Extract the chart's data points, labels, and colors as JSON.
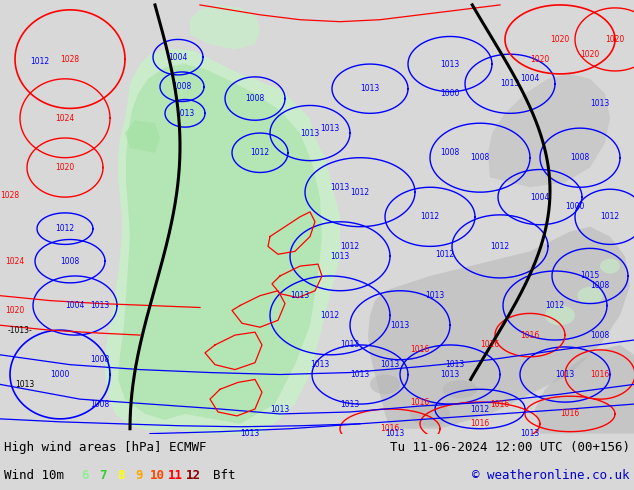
{
  "title_left": "High wind areas [hPa] ECMWF",
  "title_right": "Tu 11-06-2024 12:00 UTC (00+156)",
  "wind_label": "Wind 10m",
  "bft_label": "Bft",
  "copyright": "© weatheronline.co.uk",
  "bft_numbers": [
    "6",
    "7",
    "8",
    "9",
    "10",
    "11",
    "12"
  ],
  "bft_colors": [
    "#90ee90",
    "#32cd32",
    "#ffff00",
    "#ffa500",
    "#ff4500",
    "#ff0000",
    "#8b0000"
  ],
  "bg_color": "#d8d8d8",
  "map_bg": "#ffffff",
  "fig_width": 6.34,
  "fig_height": 4.9,
  "dpi": 100,
  "label_fontsize": 9,
  "map_white": "#ffffff",
  "land_gray": "#b4b4b4",
  "green_light": "#c8f0c8",
  "green_mid": "#a0e0a0",
  "green_dark": "#78c878",
  "blue_contour": "#0000ff",
  "red_contour": "#ff0000",
  "black_contour": "#000000"
}
